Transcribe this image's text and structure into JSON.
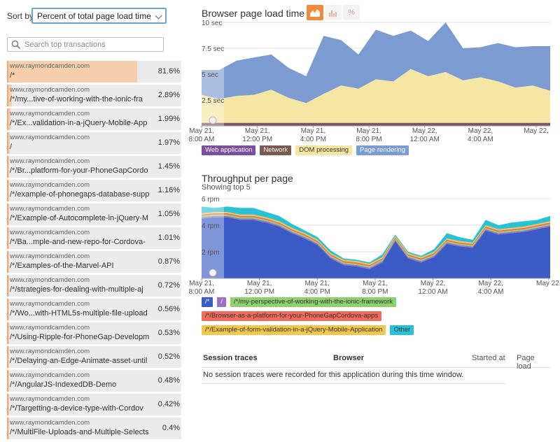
{
  "sort": {
    "label": "Sort by",
    "selected": "Percent of total page load time"
  },
  "search": {
    "placeholder": "Search top transactions"
  },
  "transactions": [
    {
      "host": "www.raymondcamden.com",
      "path": "/*",
      "pct_label": "81.6%",
      "pct": 81.6
    },
    {
      "host": "www.raymondcamden.com",
      "path": "/*/my...tive-of-working-with-the-ionic-fra",
      "pct_label": "2.89%",
      "pct": 2.89
    },
    {
      "host": "www.raymondcamden.com",
      "path": "/*/Ex...validation-in-a-jQuery-Mobile-App",
      "pct_label": "1.99%",
      "pct": 1.99
    },
    {
      "host": "www.raymondcamden.com",
      "path": "/",
      "pct_label": "1.97%",
      "pct": 1.97
    },
    {
      "host": "www.raymondcamden.com",
      "path": "/*/Br...platform-for-your-PhoneGapCordo",
      "pct_label": "1.45%",
      "pct": 1.45
    },
    {
      "host": "www.raymondcamden.com",
      "path": "/*/example-of-phonegaps-database-supp",
      "pct_label": "1.16%",
      "pct": 1.16
    },
    {
      "host": "www.raymondcamden.com",
      "path": "/*/Example-of-Autocomplete-in-jQuery-M",
      "pct_label": "1.05%",
      "pct": 1.05
    },
    {
      "host": "www.raymondcamden.com",
      "path": "/*/Ba...mple-and-new-repo-for-Cordova-",
      "pct_label": "1.01%",
      "pct": 1.01
    },
    {
      "host": "www.raymondcamden.com",
      "path": "/*/Examples-of-the-Marvel-API",
      "pct_label": "0.87%",
      "pct": 0.87
    },
    {
      "host": "www.raymondcamden.com",
      "path": "/*/strategies-for-dealing-with-multiple-aj",
      "pct_label": "0.72%",
      "pct": 0.72
    },
    {
      "host": "www.raymondcamden.com",
      "path": "/*/Wo...with-HTML5s-multiple-file-upload",
      "pct_label": "0.56%",
      "pct": 0.56
    },
    {
      "host": "www.raymondcamden.com",
      "path": "/*/Using-Ripple-for-PhoneGap-Developm",
      "pct_label": "0.53%",
      "pct": 0.53
    },
    {
      "host": "www.raymondcamden.com",
      "path": "/*/Delaying-an-Edge-Animate-asset-until",
      "pct_label": "0.52%",
      "pct": 0.52
    },
    {
      "host": "www.raymondcamden.com",
      "path": "/*/AngularJS-IndexedDB-Demo",
      "pct_label": "0.48%",
      "pct": 0.48
    },
    {
      "host": "www.raymondcamden.com",
      "path": "/*/Targetting-a-device-type-with-Cordov",
      "pct_label": "0.42%",
      "pct": 0.42
    },
    {
      "host": "www.raymondcamden.com",
      "path": "/*/MultiFile-Uploads-and-Multiple-Selects",
      "pct_label": "0.4%",
      "pct": 0.4
    }
  ],
  "chart_data": [
    {
      "type": "area",
      "title": "Browser page load time",
      "chart_type_toggles": [
        "stacked-area-icon",
        "bar-icon",
        "percent-icon"
      ],
      "chart_type_percent_label": "%",
      "active_toggle": "stacked-area-icon",
      "ylim": [
        0,
        10
      ],
      "yticks": [
        2.5,
        5,
        7.5,
        10
      ],
      "ytick_labels": [
        "2.5 sec",
        "5 sec",
        "7.5 sec",
        "10 sec"
      ],
      "x": [
        0,
        1,
        2,
        3,
        4,
        5,
        6,
        7,
        8,
        9,
        10,
        11,
        12,
        13,
        14,
        15,
        16,
        17,
        18,
        19,
        20
      ],
      "xtick_positions": [
        0,
        3.2,
        6.4,
        9.6,
        12.8,
        16,
        19.2
      ],
      "xtick_labels": [
        [
          "May 21,",
          "8:00 AM"
        ],
        [
          "May 21,",
          "12:00 PM"
        ],
        [
          "May 21,",
          "4:00 PM"
        ],
        [
          "May 21,",
          "8:00 PM"
        ],
        [
          "May 22,",
          "12:00 AM"
        ],
        [
          "May 22,",
          "4:00 AM"
        ],
        [
          "May 22,",
          ""
        ]
      ],
      "series": [
        {
          "name": "Web application",
          "color": "#7b4f9d",
          "values": [
            0.1,
            0.1,
            0.1,
            0.1,
            0.1,
            0.1,
            0.1,
            0.1,
            0.1,
            0.1,
            0.1,
            0.1,
            0.1,
            0.1,
            0.1,
            0.1,
            0.1,
            0.1,
            0.1,
            0.1,
            0.1
          ]
        },
        {
          "name": "Network",
          "color": "#7a5a4f",
          "values": [
            0.2,
            0.2,
            0.2,
            0.2,
            0.2,
            0.2,
            0.2,
            0.2,
            0.2,
            0.2,
            0.2,
            0.2,
            0.2,
            0.2,
            0.2,
            0.2,
            0.2,
            0.2,
            0.2,
            0.2,
            0.2
          ]
        },
        {
          "name": "DOM processing",
          "color": "#f6e6a3",
          "values": [
            2.7,
            2.3,
            2.6,
            2.7,
            3.2,
            2.4,
            1.9,
            2.8,
            3.6,
            3.3,
            4.2,
            4.0,
            5.2,
            4.5,
            4.9,
            4.1,
            4.4,
            4.0,
            3.4,
            3.6,
            3.1
          ]
        },
        {
          "name": "Page rendering",
          "color": "#7b9bd1",
          "values": [
            2.4,
            2.8,
            3.4,
            3.6,
            3.4,
            2.9,
            2.6,
            5.6,
            4.4,
            3.3,
            4.8,
            4.4,
            3.7,
            3.4,
            4.8,
            3.1,
            2.9,
            3.7,
            3.9,
            3.8,
            4.3
          ]
        }
      ],
      "legend_position": "bottom-left"
    },
    {
      "type": "area",
      "title": "Throughput per page",
      "subtitle": "Showing top 5",
      "ylim": [
        0,
        6
      ],
      "yticks": [
        2,
        4,
        6
      ],
      "ytick_labels": [
        "2 rpm",
        "4 rpm",
        "6 rpm"
      ],
      "x": [
        0,
        1,
        2,
        3,
        4,
        5,
        6,
        7,
        8,
        9,
        10,
        11,
        12,
        13,
        14,
        15,
        16,
        17,
        18,
        19,
        20,
        21,
        22,
        23,
        24,
        25,
        26,
        27
      ],
      "xtick_positions": [
        0,
        4.48,
        8.96,
        13.44,
        17.92,
        22.4,
        26.88
      ],
      "xtick_labels": [
        [
          "May 21,",
          "8:00 AM"
        ],
        [
          "May 21,",
          "12:00 PM"
        ],
        [
          "May 21,",
          "4:00 PM"
        ],
        [
          "May 21,",
          "8:00 PM"
        ],
        [
          "May 22,",
          "12:00 AM"
        ],
        [
          "May 22,",
          "4:00 AM"
        ],
        [
          "May 22,",
          ""
        ]
      ],
      "series": [
        {
          "name": "/*",
          "color": "#3b5cc4",
          "values": [
            4.5,
            4.6,
            4.6,
            4.4,
            4.4,
            4.2,
            3.9,
            3.4,
            3.0,
            2.5,
            1.5,
            1.0,
            0.9,
            0.7,
            1.2,
            2.8,
            1.5,
            1.2,
            1.6,
            2.6,
            2.4,
            2.3,
            3.6,
            3.3,
            3.4,
            3.5,
            3.7,
            3.9
          ]
        },
        {
          "name": "/",
          "color": "#9a70c9",
          "values": [
            0.1,
            0.1,
            0.1,
            0.1,
            0.1,
            0.1,
            0.1,
            0.1,
            0.1,
            0.1,
            0.1,
            0.1,
            0.1,
            0.1,
            0.1,
            0.1,
            0.1,
            0.1,
            0.1,
            0.1,
            0.1,
            0.1,
            0.1,
            0.1,
            0.1,
            0.1,
            0.1,
            0.1
          ]
        },
        {
          "name": "/*/my-perspective-of-working-with-the-ionic-framework",
          "color": "#8fd16c",
          "values": [
            0.1,
            0.1,
            0.1,
            0.1,
            0.1,
            0.1,
            0.1,
            0.1,
            0.1,
            0.1,
            0.1,
            0.1,
            0.1,
            0.1,
            0.1,
            0.1,
            0.1,
            0.1,
            0.1,
            0.1,
            0.1,
            0.1,
            0.1,
            0.1,
            0.1,
            0.1,
            0.1,
            0.1
          ]
        },
        {
          "name": "/*/Browser-as-a-platform-for-your-PhoneGapCordova-apps",
          "color": "#f06b5c",
          "values": [
            0.1,
            0.1,
            0.1,
            0.1,
            0.1,
            0.1,
            0.1,
            0.1,
            0.1,
            0.1,
            0.1,
            0.1,
            0.1,
            0.1,
            0.1,
            0.1,
            0.1,
            0.1,
            0.1,
            0.1,
            0.1,
            0.1,
            0.1,
            0.1,
            0.1,
            0.1,
            0.1,
            0.1
          ]
        },
        {
          "name": "/*/Example-of-form-validation-in-a-jQuery-Mobile-Application",
          "color": "#f3c74b",
          "values": [
            0.1,
            0.1,
            0.1,
            0.1,
            0.1,
            0.1,
            0.1,
            0.1,
            0.1,
            0.1,
            0.1,
            0.1,
            0.1,
            0.1,
            0.1,
            0.1,
            0.1,
            0.1,
            0.1,
            0.1,
            0.1,
            0.1,
            0.1,
            0.1,
            0.1,
            0.1,
            0.1,
            0.1
          ]
        },
        {
          "name": "Other",
          "color": "#27c1d8",
          "values": [
            0.5,
            0.3,
            0.4,
            0.5,
            0.5,
            0.4,
            0.4,
            0.3,
            0.2,
            0.2,
            0.2,
            0.1,
            0.1,
            0.1,
            0.2,
            0.1,
            0.1,
            0.1,
            0.2,
            0.4,
            0.3,
            0.2,
            0.4,
            0.3,
            0.4,
            0.4,
            0.3,
            0.4
          ]
        }
      ],
      "legend_position": "bottom-left"
    }
  ],
  "traces": {
    "headers": {
      "session": "Session traces",
      "browser": "Browser",
      "started": "Started at",
      "load": "Page load"
    },
    "empty_message": "No session traces were recorded for this application during this time window."
  }
}
